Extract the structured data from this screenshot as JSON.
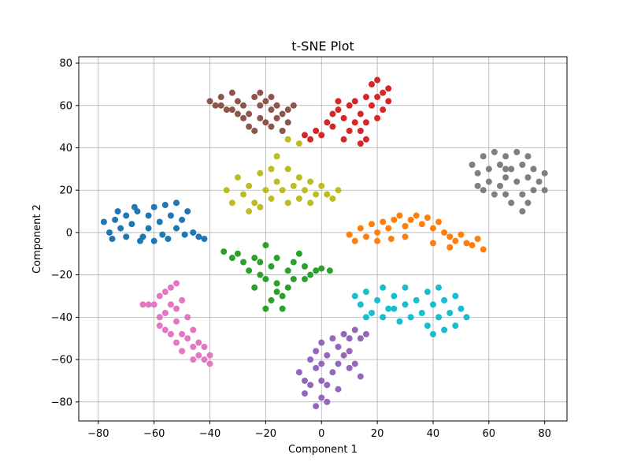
{
  "chart_data": {
    "type": "scatter",
    "title": "t-SNE Plot",
    "xlabel": "Component 1",
    "ylabel": "Component 2",
    "xlim": [
      -87,
      88
    ],
    "ylim": [
      -89,
      83
    ],
    "xticks": [
      -80,
      -60,
      -40,
      -20,
      0,
      20,
      40,
      60,
      80
    ],
    "yticks": [
      -80,
      -60,
      -40,
      -20,
      0,
      20,
      40,
      60,
      80
    ],
    "xtick_labels": [
      "−80",
      "−60",
      "−40",
      "−20",
      "0",
      "20",
      "40",
      "60",
      "80"
    ],
    "ytick_labels": [
      "−80",
      "−60",
      "−40",
      "−20",
      "0",
      "20",
      "40",
      "60",
      "80"
    ],
    "grid": true,
    "legend": "none",
    "clusters": [
      {
        "color": "#1f77b4",
        "points": [
          [
            -78,
            5
          ],
          [
            -76,
            0
          ],
          [
            -74,
            6
          ],
          [
            -72,
            2
          ],
          [
            -70,
            8
          ],
          [
            -68,
            4
          ],
          [
            -66,
            10
          ],
          [
            -64,
            -2
          ],
          [
            -62,
            8
          ],
          [
            -60,
            12
          ],
          [
            -58,
            5
          ],
          [
            -56,
            13
          ],
          [
            -54,
            8
          ],
          [
            -52,
            14
          ],
          [
            -50,
            6
          ],
          [
            -48,
            10
          ],
          [
            -46,
            0
          ],
          [
            -44,
            -2
          ],
          [
            -42,
            -3
          ],
          [
            -75,
            -3
          ],
          [
            -70,
            -2
          ],
          [
            -65,
            -4
          ],
          [
            -60,
            -4
          ],
          [
            -55,
            -3
          ],
          [
            -52,
            2
          ],
          [
            -49,
            -1
          ],
          [
            -67,
            12
          ],
          [
            -57,
            -1
          ],
          [
            -62,
            2
          ],
          [
            -73,
            10
          ]
        ]
      },
      {
        "color": "#ff7f0e",
        "points": [
          [
            10,
            -1
          ],
          [
            12,
            -4
          ],
          [
            14,
            2
          ],
          [
            16,
            -2
          ],
          [
            18,
            4
          ],
          [
            20,
            0
          ],
          [
            22,
            5
          ],
          [
            24,
            2
          ],
          [
            26,
            6
          ],
          [
            28,
            8
          ],
          [
            30,
            3
          ],
          [
            32,
            6
          ],
          [
            34,
            8
          ],
          [
            36,
            4
          ],
          [
            38,
            7
          ],
          [
            40,
            2
          ],
          [
            42,
            5
          ],
          [
            44,
            0
          ],
          [
            46,
            -2
          ],
          [
            48,
            -4
          ],
          [
            50,
            -1
          ],
          [
            52,
            -5
          ],
          [
            54,
            -6
          ],
          [
            56,
            -3
          ],
          [
            58,
            -8
          ],
          [
            20,
            -4
          ],
          [
            30,
            -2
          ],
          [
            40,
            -5
          ],
          [
            46,
            -7
          ],
          [
            25,
            -3
          ]
        ]
      },
      {
        "color": "#2ca02c",
        "points": [
          [
            -35,
            -9
          ],
          [
            -32,
            -12
          ],
          [
            -30,
            -10
          ],
          [
            -28,
            -14
          ],
          [
            -26,
            -18
          ],
          [
            -24,
            -12
          ],
          [
            -22,
            -20
          ],
          [
            -20,
            -6
          ],
          [
            -18,
            -16
          ],
          [
            -16,
            -24
          ],
          [
            -14,
            -30
          ],
          [
            -12,
            -18
          ],
          [
            -10,
            -14
          ],
          [
            -8,
            -10
          ],
          [
            -6,
            -16
          ],
          [
            -4,
            -20
          ],
          [
            -2,
            -18
          ],
          [
            0,
            -17
          ],
          [
            3,
            -18
          ],
          [
            -18,
            -32
          ],
          [
            -16,
            -28
          ],
          [
            -14,
            -36
          ],
          [
            -20,
            -36
          ],
          [
            -12,
            -26
          ],
          [
            -24,
            -26
          ],
          [
            -10,
            -22
          ],
          [
            -20,
            -22
          ],
          [
            -6,
            -22
          ],
          [
            -16,
            -12
          ],
          [
            -22,
            -14
          ]
        ]
      },
      {
        "color": "#d62728",
        "points": [
          [
            -6,
            46
          ],
          [
            -4,
            44
          ],
          [
            -2,
            48
          ],
          [
            0,
            46
          ],
          [
            2,
            52
          ],
          [
            4,
            50
          ],
          [
            4,
            56
          ],
          [
            6,
            58
          ],
          [
            8,
            54
          ],
          [
            8,
            44
          ],
          [
            10,
            60
          ],
          [
            12,
            62
          ],
          [
            14,
            56
          ],
          [
            14,
            48
          ],
          [
            16,
            64
          ],
          [
            16,
            52
          ],
          [
            18,
            70
          ],
          [
            18,
            60
          ],
          [
            20,
            72
          ],
          [
            20,
            64
          ],
          [
            22,
            66
          ],
          [
            22,
            58
          ],
          [
            24,
            62
          ],
          [
            24,
            68
          ],
          [
            12,
            52
          ],
          [
            10,
            48
          ],
          [
            6,
            62
          ],
          [
            16,
            44
          ],
          [
            20,
            54
          ],
          [
            14,
            42
          ]
        ]
      },
      {
        "color": "#9467bd",
        "points": [
          [
            -8,
            -66
          ],
          [
            -6,
            -70
          ],
          [
            -6,
            -76
          ],
          [
            -4,
            -60
          ],
          [
            -4,
            -72
          ],
          [
            -2,
            -56
          ],
          [
            -2,
            -64
          ],
          [
            0,
            -52
          ],
          [
            0,
            -62
          ],
          [
            0,
            -78
          ],
          [
            2,
            -58
          ],
          [
            2,
            -72
          ],
          [
            4,
            -50
          ],
          [
            4,
            -66
          ],
          [
            6,
            -54
          ],
          [
            6,
            -62
          ],
          [
            8,
            -48
          ],
          [
            8,
            -58
          ],
          [
            10,
            -50
          ],
          [
            10,
            -56
          ],
          [
            12,
            -46
          ],
          [
            12,
            -62
          ],
          [
            14,
            -50
          ],
          [
            14,
            -68
          ],
          [
            16,
            -48
          ],
          [
            2,
            -80
          ],
          [
            -2,
            -82
          ],
          [
            0,
            -70
          ],
          [
            6,
            -74
          ],
          [
            10,
            -64
          ]
        ]
      },
      {
        "color": "#8c564b",
        "points": [
          [
            -40,
            62
          ],
          [
            -38,
            60
          ],
          [
            -36,
            64
          ],
          [
            -34,
            58
          ],
          [
            -32,
            66
          ],
          [
            -30,
            62
          ],
          [
            -28,
            60
          ],
          [
            -26,
            56
          ],
          [
            -24,
            64
          ],
          [
            -22,
            60
          ],
          [
            -22,
            54
          ],
          [
            -20,
            52
          ],
          [
            -18,
            58
          ],
          [
            -18,
            64
          ],
          [
            -16,
            60
          ],
          [
            -16,
            54
          ],
          [
            -14,
            56
          ],
          [
            -14,
            48
          ],
          [
            -12,
            58
          ],
          [
            -12,
            52
          ],
          [
            -10,
            60
          ],
          [
            -26,
            50
          ],
          [
            -28,
            54
          ],
          [
            -32,
            58
          ],
          [
            -36,
            60
          ],
          [
            -24,
            48
          ],
          [
            -20,
            62
          ],
          [
            -30,
            56
          ],
          [
            -22,
            66
          ],
          [
            -18,
            50
          ]
        ]
      },
      {
        "color": "#e377c2",
        "points": [
          [
            -64,
            -34
          ],
          [
            -60,
            -34
          ],
          [
            -58,
            -30
          ],
          [
            -58,
            -40
          ],
          [
            -56,
            -38
          ],
          [
            -56,
            -46
          ],
          [
            -54,
            -26
          ],
          [
            -54,
            -34
          ],
          [
            -54,
            -48
          ],
          [
            -52,
            -24
          ],
          [
            -52,
            -42
          ],
          [
            -52,
            -52
          ],
          [
            -50,
            -32
          ],
          [
            -50,
            -56
          ],
          [
            -48,
            -40
          ],
          [
            -48,
            -50
          ],
          [
            -46,
            -46
          ],
          [
            -46,
            -54
          ],
          [
            -44,
            -52
          ],
          [
            -44,
            -58
          ],
          [
            -42,
            -54
          ],
          [
            -42,
            -60
          ],
          [
            -40,
            -58
          ],
          [
            -40,
            -62
          ],
          [
            -56,
            -28
          ],
          [
            -58,
            -44
          ],
          [
            -50,
            -48
          ],
          [
            -52,
            -36
          ],
          [
            -46,
            -60
          ],
          [
            -62,
            -34
          ]
        ]
      },
      {
        "color": "#7f7f7f",
        "points": [
          [
            54,
            32
          ],
          [
            56,
            28
          ],
          [
            56,
            22
          ],
          [
            58,
            36
          ],
          [
            60,
            30
          ],
          [
            60,
            24
          ],
          [
            62,
            18
          ],
          [
            62,
            38
          ],
          [
            64,
            32
          ],
          [
            64,
            22
          ],
          [
            66,
            36
          ],
          [
            66,
            26
          ],
          [
            66,
            18
          ],
          [
            68,
            30
          ],
          [
            68,
            14
          ],
          [
            70,
            38
          ],
          [
            70,
            24
          ],
          [
            72,
            32
          ],
          [
            72,
            18
          ],
          [
            72,
            10
          ],
          [
            74,
            36
          ],
          [
            74,
            26
          ],
          [
            74,
            14
          ],
          [
            76,
            30
          ],
          [
            76,
            20
          ],
          [
            78,
            24
          ],
          [
            80,
            20
          ],
          [
            80,
            28
          ],
          [
            58,
            20
          ],
          [
            66,
            30
          ]
        ]
      },
      {
        "color": "#bcbd22",
        "points": [
          [
            -34,
            20
          ],
          [
            -32,
            14
          ],
          [
            -30,
            26
          ],
          [
            -28,
            18
          ],
          [
            -26,
            22
          ],
          [
            -24,
            14
          ],
          [
            -22,
            28
          ],
          [
            -22,
            12
          ],
          [
            -20,
            20
          ],
          [
            -18,
            30
          ],
          [
            -18,
            16
          ],
          [
            -16,
            24
          ],
          [
            -14,
            20
          ],
          [
            -12,
            30
          ],
          [
            -12,
            14
          ],
          [
            -10,
            22
          ],
          [
            -8,
            26
          ],
          [
            -8,
            16
          ],
          [
            -6,
            20
          ],
          [
            -4,
            24
          ],
          [
            -4,
            14
          ],
          [
            -2,
            18
          ],
          [
            0,
            22
          ],
          [
            2,
            18
          ],
          [
            4,
            16
          ],
          [
            6,
            20
          ],
          [
            -16,
            36
          ],
          [
            -26,
            10
          ],
          [
            -8,
            42
          ],
          [
            -12,
            44
          ]
        ]
      },
      {
        "color": "#17becf",
        "points": [
          [
            12,
            -30
          ],
          [
            14,
            -34
          ],
          [
            16,
            -28
          ],
          [
            18,
            -38
          ],
          [
            20,
            -32
          ],
          [
            22,
            -26
          ],
          [
            22,
            -40
          ],
          [
            24,
            -36
          ],
          [
            26,
            -30
          ],
          [
            28,
            -42
          ],
          [
            30,
            -34
          ],
          [
            30,
            -26
          ],
          [
            32,
            -40
          ],
          [
            34,
            -32
          ],
          [
            36,
            -38
          ],
          [
            38,
            -28
          ],
          [
            38,
            -44
          ],
          [
            40,
            -34
          ],
          [
            40,
            -48
          ],
          [
            42,
            -40
          ],
          [
            42,
            -26
          ],
          [
            44,
            -46
          ],
          [
            44,
            -32
          ],
          [
            46,
            -38
          ],
          [
            48,
            -30
          ],
          [
            48,
            -44
          ],
          [
            50,
            -36
          ],
          [
            52,
            -40
          ],
          [
            16,
            -40
          ],
          [
            26,
            -36
          ]
        ]
      }
    ]
  }
}
